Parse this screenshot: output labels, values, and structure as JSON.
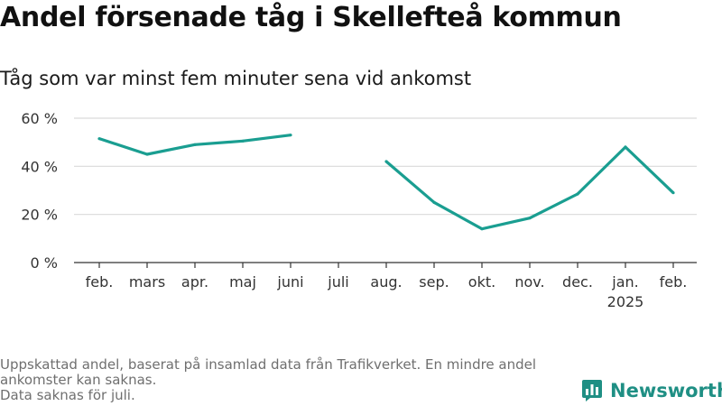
{
  "title": "Andel försenade tåg i Skellefteå kommun",
  "subtitle": "Tåg som var minst fem minuter sena vid ankomst",
  "footer": {
    "note_1": "Uppskattad andel, baserat på insamlad data från Trafikverket. En mindre andel ankomster kan saknas.",
    "note_2": "Data saknas för juli."
  },
  "brand": {
    "name": "Newsworthy",
    "icon": "newsworthy-bar-chart-icon"
  },
  "colors": {
    "line": "#1a9e91",
    "grid": "#d9d9d9",
    "axis": "#333333",
    "brand": "#1f8f84"
  },
  "chart_data": {
    "type": "line",
    "title": "Andel försenade tåg i Skellefteå kommun",
    "xlabel": "",
    "ylabel": "",
    "categories": [
      "feb.",
      "mars",
      "apr.",
      "maj",
      "juni",
      "juli",
      "aug.",
      "sep.",
      "okt.",
      "nov.",
      "dec.",
      "jan.",
      "feb."
    ],
    "year_labels": [
      "",
      "",
      "",
      "",
      "",
      "",
      "",
      "",
      "",
      "",
      "",
      "2025",
      ""
    ],
    "series": [
      {
        "name": "Andel försenade tåg",
        "values": [
          51.5,
          45,
          49,
          50.5,
          53,
          null,
          42,
          25,
          14,
          18.5,
          28.5,
          48,
          29
        ]
      }
    ],
    "ylim": [
      0,
      60
    ],
    "yticks": [
      0,
      20,
      40,
      60
    ],
    "ytick_labels": [
      "0 %",
      "20 %",
      "40 %",
      "60 %"
    ],
    "grid": true,
    "legend": "none"
  }
}
